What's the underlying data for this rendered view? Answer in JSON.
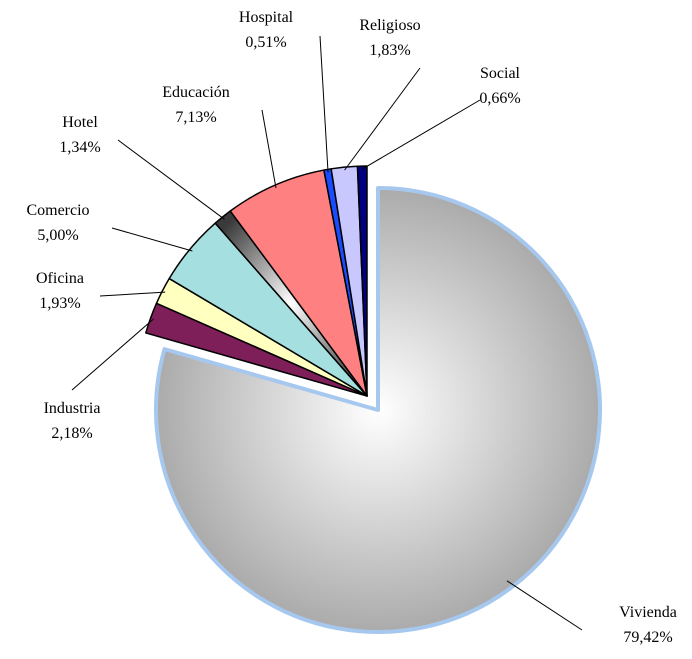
{
  "chart_data": {
    "type": "pie",
    "categories": [
      "Vivienda",
      "Industria",
      "Oficina",
      "Comercio",
      "Hotel",
      "Educación",
      "Hospital",
      "Religioso",
      "Social"
    ],
    "values": [
      79.42,
      2.18,
      1.93,
      5.0,
      1.34,
      7.13,
      0.51,
      1.83,
      0.66
    ],
    "value_labels": [
      "79,42%",
      "2,18%",
      "1,93%",
      "5,00%",
      "1,34%",
      "7,13%",
      "0,51%",
      "1,83%",
      "0,66%"
    ],
    "colors": [
      "#9a9a9a",
      "#7f1f5a",
      "#ffffc0",
      "#a6dfe0",
      "#3a3a3a",
      "#ff8080",
      "#1a4cff",
      "#c8c8ff",
      "#000080"
    ]
  }
}
